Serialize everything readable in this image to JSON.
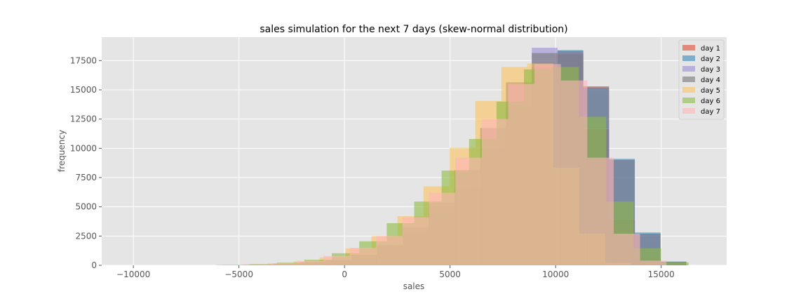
{
  "chart_data": {
    "type": "bar",
    "title": "sales simulation for the next 7 days (skew-normal distribution)",
    "xlabel": "sales",
    "ylabel": "frequency",
    "xlim": [
      -11500,
      18100
    ],
    "ylim": [
      0,
      19500
    ],
    "x_ticks": [
      -10000,
      -5000,
      0,
      5000,
      10000,
      15000
    ],
    "x_tick_labels": [
      "−10000",
      "−5000",
      "0",
      "5000",
      "10000",
      "15000"
    ],
    "y_ticks": [
      0,
      2500,
      5000,
      7500,
      10000,
      12500,
      15000,
      17500
    ],
    "y_tick_labels": [
      "0",
      "2500",
      "5000",
      "7500",
      "10000",
      "12500",
      "15000",
      "17500"
    ],
    "grid": true,
    "legend_position": "top-right",
    "series": [
      {
        "name": "day 1",
        "color": "#E24A33",
        "start": -4550,
        "bin_width": 1220,
        "values": [
          50,
          120,
          250,
          420,
          850,
          1600,
          2650,
          4300,
          6550,
          9700,
          13450,
          16900,
          18300,
          15300,
          9000,
          2700,
          300
        ]
      },
      {
        "name": "day 2",
        "color": "#348ABD",
        "start": -4550,
        "bin_width": 1220,
        "values": [
          50,
          150,
          260,
          450,
          900,
          1650,
          2700,
          4400,
          6700,
          10050,
          13550,
          16950,
          18400,
          15200,
          9100,
          2800,
          320
        ]
      },
      {
        "name": "day 3",
        "color": "#988ED5",
        "start": -4550,
        "bin_width": 1220,
        "values": [
          40,
          130,
          250,
          450,
          870,
          1700,
          3050,
          5050,
          7950,
          11700,
          15550,
          18600,
          18150,
          11700,
          3800,
          560,
          50
        ]
      },
      {
        "name": "day 4",
        "color": "#777777",
        "start": -4550,
        "bin_width": 1220,
        "values": [
          40,
          130,
          250,
          430,
          880,
          1760,
          3250,
          5350,
          8150,
          11750,
          15650,
          18150,
          18100,
          11650,
          3850,
          570,
          60
        ]
      },
      {
        "name": "day 5",
        "color": "#FBC15E",
        "start": -6100,
        "bin_width": 1230,
        "values": [
          30,
          70,
          150,
          320,
          680,
          1450,
          2500,
          4200,
          6750,
          10050,
          14050,
          16950,
          17250,
          8350,
          2700,
          200
        ]
      },
      {
        "name": "day 6",
        "color": "#8EBA42",
        "start": -5800,
        "bin_width": 1300,
        "values": [
          40,
          100,
          230,
          480,
          1030,
          2050,
          3600,
          5450,
          8100,
          10800,
          14000,
          16750,
          16950,
          12700,
          5450,
          1450,
          250
        ]
      },
      {
        "name": "day 7",
        "color": "#FFB5B8",
        "start": -6000,
        "bin_width": 1250,
        "values": [
          30,
          80,
          180,
          380,
          800,
          1500,
          2500,
          4100,
          6200,
          9200,
          12500,
          15500,
          17200,
          15800,
          9200,
          2700,
          400
        ]
      }
    ]
  }
}
